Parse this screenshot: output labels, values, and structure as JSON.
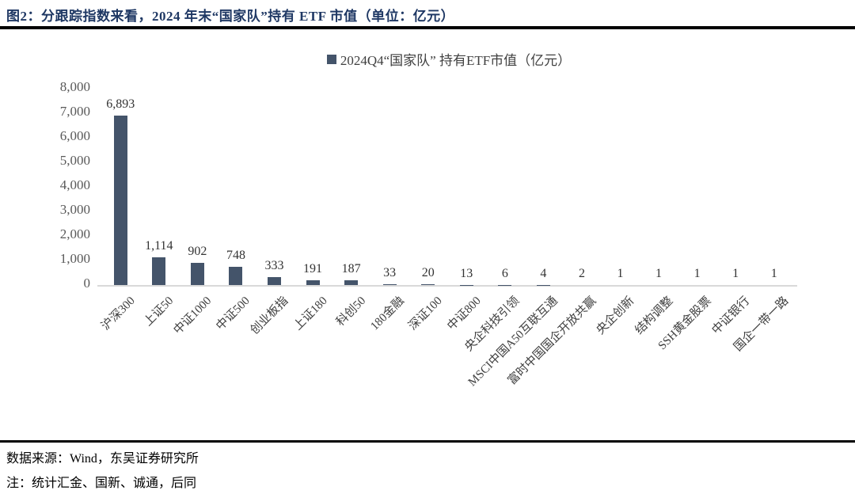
{
  "figure": {
    "title": "图2：分跟踪指数来看，2024 年末“国家队”持有 ETF 市值（单位：亿元）"
  },
  "legend": {
    "label": "2024Q4“国家队” 持有ETF市值（亿元）",
    "marker_color": "#44546A"
  },
  "chart_data": {
    "type": "bar",
    "title": "2024Q4“国家队” 持有ETF市值（亿元）",
    "categories": [
      "沪深300",
      "上证50",
      "中证1000",
      "中证500",
      "创业板指",
      "上证180",
      "科创50",
      "180金融",
      "深证100",
      "中证800",
      "央企科技引领",
      "MSCI中国A50互联互通",
      "富时中国国企开放共赢",
      "央企创新",
      "结构调整",
      "SSH黄金股票",
      "中证银行",
      "国企一带一路"
    ],
    "values": [
      6893,
      1114,
      902,
      748,
      333,
      191,
      187,
      33,
      20,
      13,
      6,
      4,
      2,
      1,
      1,
      1,
      1,
      1
    ],
    "value_labels": [
      "6,893",
      "1,114",
      "902",
      "748",
      "333",
      "191",
      "187",
      "33",
      "20",
      "13",
      "6",
      "4",
      "2",
      "1",
      "1",
      "1",
      "1",
      "1"
    ],
    "xlabel": "",
    "ylabel": "",
    "ylim": [
      0,
      8000
    ],
    "ytick_interval": 1000,
    "ytick_labels": [
      "0",
      "1,000",
      "2,000",
      "3,000",
      "4,000",
      "5,000",
      "6,000",
      "7,000",
      "8,000"
    ],
    "grid": false,
    "legend_position": "top",
    "bar_color": "#44546A",
    "data_labels_shown": true,
    "xlabel_rotation_deg": 45
  },
  "footer": {
    "source": "数据来源：Wind，东吴证券研究所",
    "note": "注：统计汇金、国新、诚通，后同"
  }
}
